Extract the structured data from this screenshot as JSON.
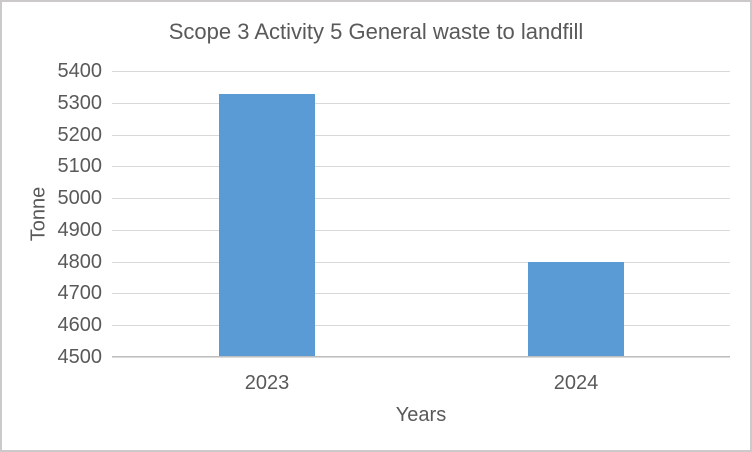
{
  "chart_data": {
    "type": "bar",
    "title": "Scope 3 Activity 5 General waste to landfill",
    "xlabel": "Years",
    "ylabel": "Tonne",
    "categories": [
      "2023",
      "2024"
    ],
    "values": [
      5325,
      4795
    ],
    "ylim": [
      4500,
      5400
    ],
    "ytick_step": 100,
    "yticks": [
      5400,
      5300,
      5200,
      5100,
      5000,
      4900,
      4800,
      4700,
      4600,
      4500
    ],
    "grid": true,
    "legend_position": "none",
    "bar_color": "#5B9BD5",
    "text_color": "#595959",
    "gridline_color": "#D9D9D9",
    "axis_line_color": "#BFBFBF"
  }
}
